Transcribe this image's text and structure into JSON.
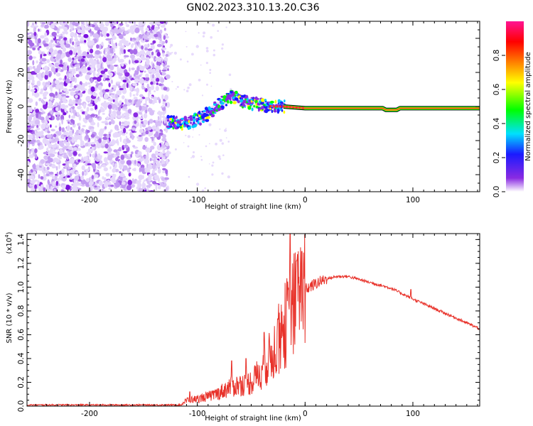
{
  "title": "GN02.2023.310.13.20.C36",
  "spectrogram": {
    "type": "heatmap",
    "xlabel": "Height of straight line (km)",
    "ylabel": "Frequency (Hz)",
    "xlim": [
      -258,
      162
    ],
    "ylim": [
      -50,
      50
    ],
    "xticks": [
      -200,
      -100,
      0,
      100
    ],
    "yticks": [
      -40,
      -20,
      0,
      20,
      40
    ],
    "colorbar": {
      "label": "Normalized spectral amplitude",
      "range": [
        0,
        1
      ],
      "ticks": [
        0.0,
        0.2,
        0.4,
        0.6,
        0.8
      ],
      "colors": [
        "#ffffff",
        "#8a2be2",
        "#1a1aff",
        "#00e0ff",
        "#00ff00",
        "#ffff00",
        "#ff7f00",
        "#ff0000",
        "#ff1493"
      ]
    },
    "noise_region": {
      "x": [
        -258,
        -127
      ],
      "amplitude": 0.1
    },
    "ridge": [
      {
        "x": -127,
        "f": -9
      },
      {
        "x": -115,
        "f": -10
      },
      {
        "x": -105,
        "f": -9
      },
      {
        "x": -95,
        "f": -6
      },
      {
        "x": -85,
        "f": -2
      },
      {
        "x": -75,
        "f": 3
      },
      {
        "x": -68,
        "f": 6
      },
      {
        "x": -60,
        "f": 4
      },
      {
        "x": -50,
        "f": 2
      },
      {
        "x": -40,
        "f": 1
      },
      {
        "x": -30,
        "f": 0
      },
      {
        "x": -20,
        "f": 0
      },
      {
        "x": 0,
        "f": -1
      },
      {
        "x": 50,
        "f": -1
      },
      {
        "x": 72,
        "f": -1
      },
      {
        "x": 75,
        "f": -2
      },
      {
        "x": 85,
        "f": -2
      },
      {
        "x": 88,
        "f": -1
      },
      {
        "x": 162,
        "f": -1
      }
    ]
  },
  "snr": {
    "type": "line",
    "xlabel": "Height of straight line (km)",
    "ylabel": "SNR (10 * v/v)",
    "scale_label": "(x10",
    "scale_exp": "4",
    "scale_close": ")",
    "xlim": [
      -258,
      162
    ],
    "ylim": [
      0,
      1.45
    ],
    "xticks": [
      -200,
      -100,
      0,
      100
    ],
    "yticks": [
      0.0,
      0.2,
      0.4,
      0.6,
      0.8,
      1.0,
      1.2,
      1.4
    ],
    "series_color": "#e8322a",
    "envelope": [
      {
        "x": -258,
        "y": 0.01
      },
      {
        "x": -115,
        "y": 0.01
      },
      {
        "x": -110,
        "y": 0.05
      },
      {
        "x": -100,
        "y": 0.06
      },
      {
        "x": -90,
        "y": 0.08
      },
      {
        "x": -80,
        "y": 0.11
      },
      {
        "x": -70,
        "y": 0.16
      },
      {
        "x": -60,
        "y": 0.18
      },
      {
        "x": -50,
        "y": 0.2
      },
      {
        "x": -40,
        "y": 0.3
      },
      {
        "x": -30,
        "y": 0.45
      },
      {
        "x": -20,
        "y": 0.65
      },
      {
        "x": -10,
        "y": 0.85
      },
      {
        "x": 0,
        "y": 0.98
      },
      {
        "x": 10,
        "y": 1.03
      },
      {
        "x": 20,
        "y": 1.07
      },
      {
        "x": 30,
        "y": 1.09
      },
      {
        "x": 40,
        "y": 1.09
      },
      {
        "x": 60,
        "y": 1.04
      },
      {
        "x": 80,
        "y": 0.99
      },
      {
        "x": 100,
        "y": 0.9
      },
      {
        "x": 120,
        "y": 0.82
      },
      {
        "x": 140,
        "y": 0.74
      },
      {
        "x": 162,
        "y": 0.65
      }
    ],
    "spikes": [
      {
        "x": -107,
        "y": 0.12
      },
      {
        "x": -68,
        "y": 0.38
      },
      {
        "x": -55,
        "y": 0.4
      },
      {
        "x": -38,
        "y": 0.62
      },
      {
        "x": -25,
        "y": 0.73
      },
      {
        "x": -14,
        "y": 1.45
      },
      {
        "x": -8,
        "y": 1.22
      },
      {
        "x": -3,
        "y": 1.3
      },
      {
        "x": 98,
        "y": 0.98
      }
    ]
  }
}
